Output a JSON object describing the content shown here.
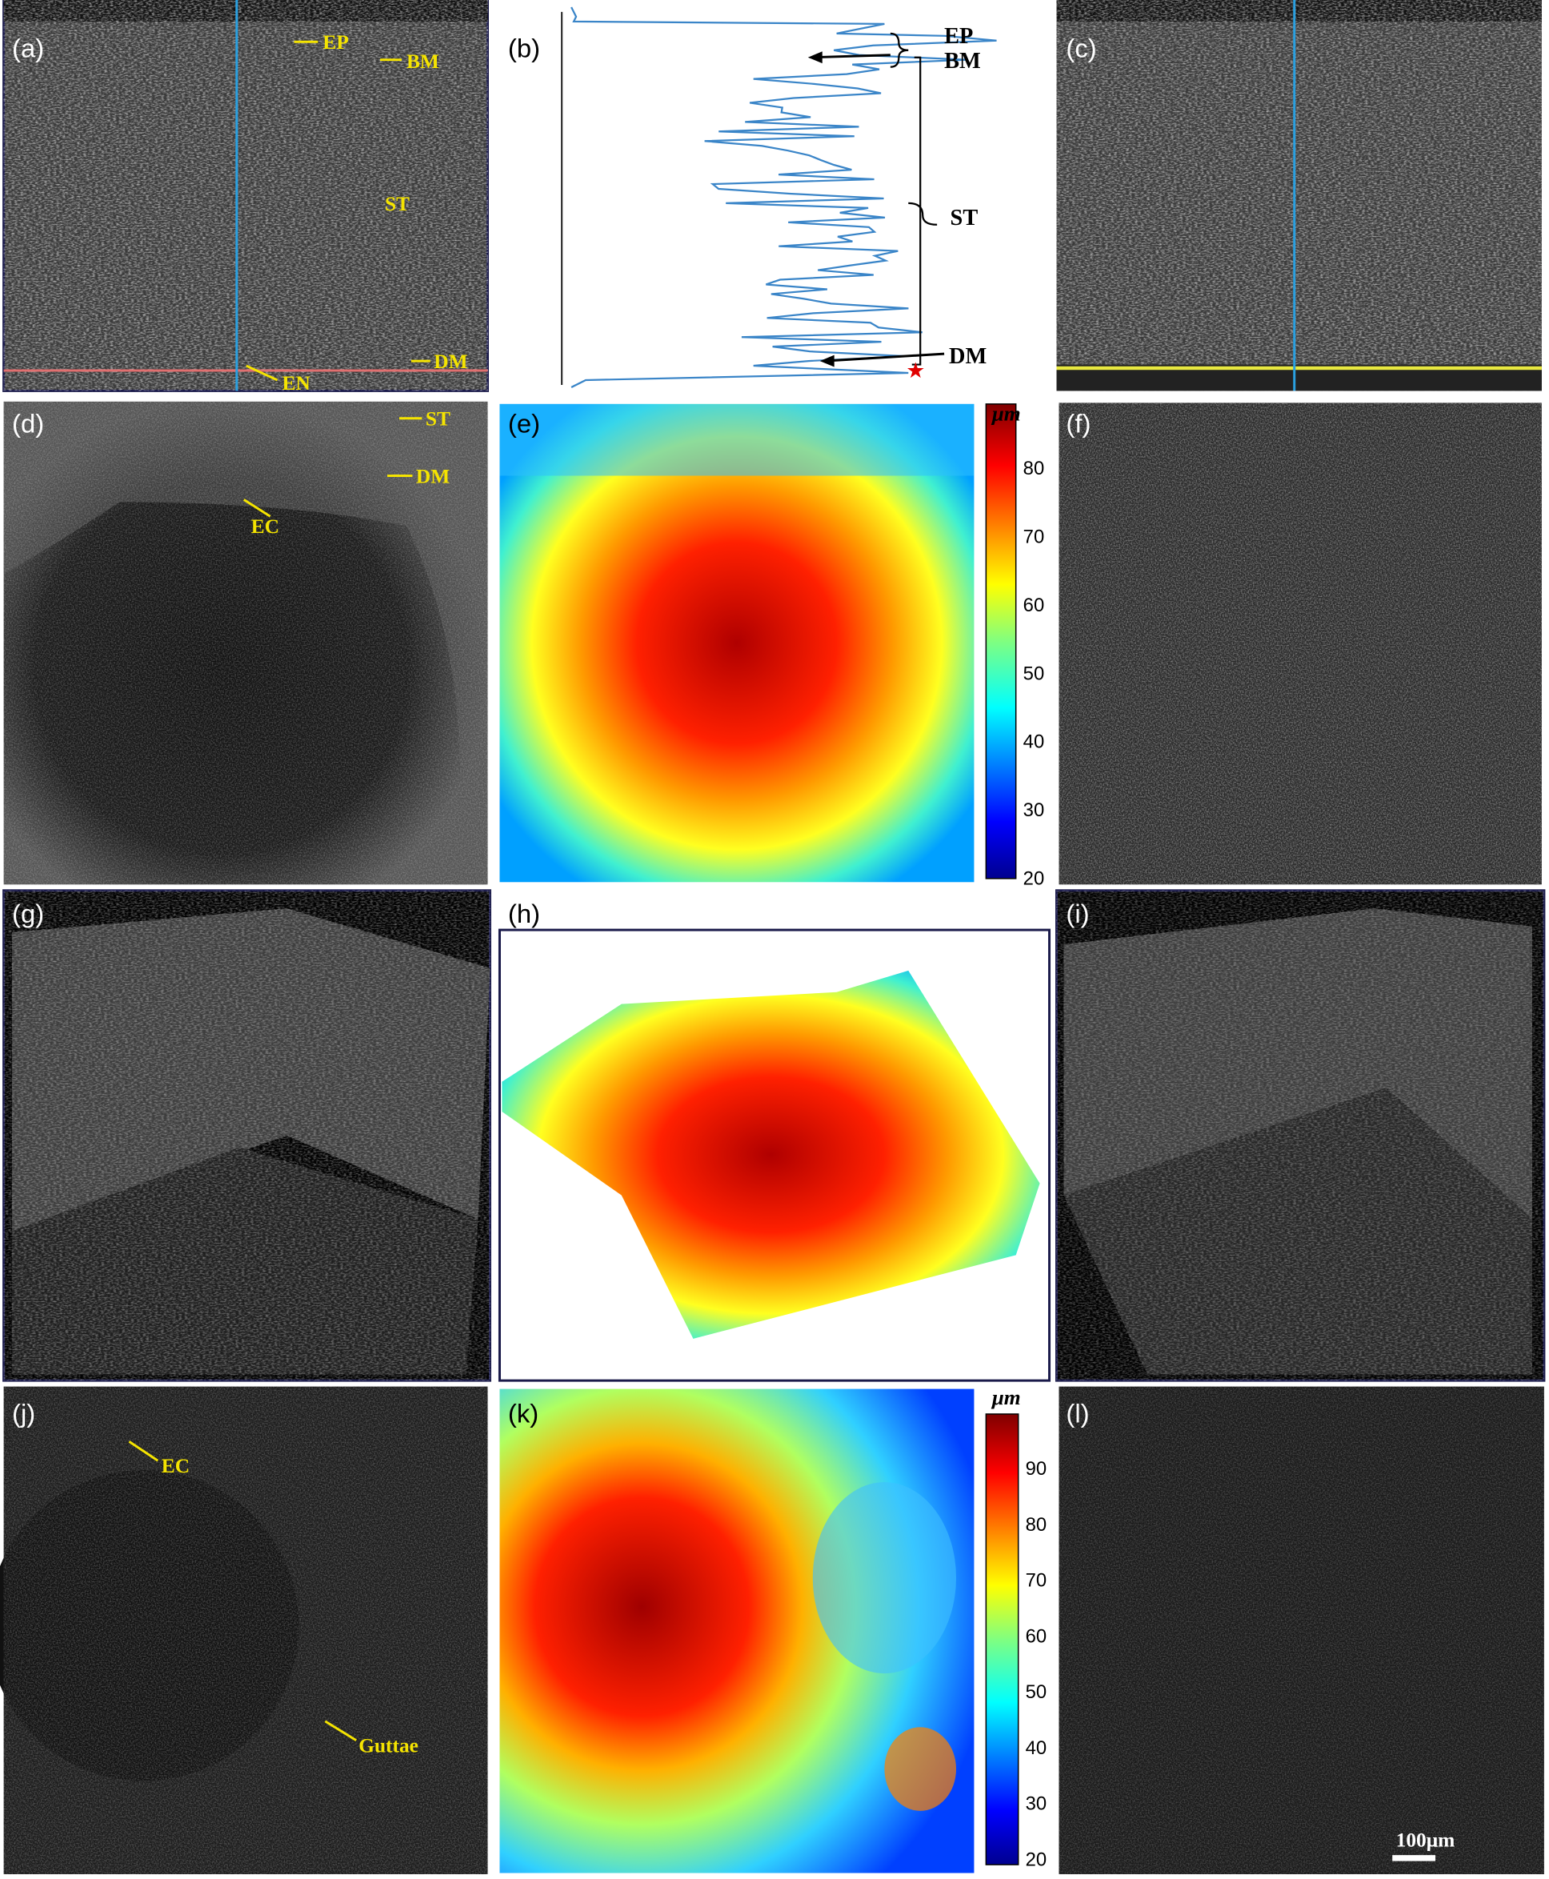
{
  "panels": [
    {
      "label": "(a)",
      "annotations": [
        "EP",
        "BM",
        "ST",
        "DM",
        "EN"
      ]
    },
    {
      "label": "(b)",
      "annotations": [
        "EP",
        "BM",
        "ST",
        "DM"
      ]
    },
    {
      "label": "(c)"
    },
    {
      "label": "(d)",
      "annotations": [
        "ST",
        "DM",
        "EC"
      ]
    },
    {
      "label": "(e)"
    },
    {
      "label": "(f)"
    },
    {
      "label": "(g)"
    },
    {
      "label": "(h)"
    },
    {
      "label": "(i)"
    },
    {
      "label": "(j)",
      "annotations": [
        "EC",
        "Guttae"
      ]
    },
    {
      "label": "(k)"
    },
    {
      "label": "(l)",
      "scale_bar": "100μm"
    }
  ],
  "colorbars": [
    {
      "unit": "μm",
      "ticks": [
        "80",
        "70",
        "60",
        "50",
        "40",
        "30",
        "20"
      ]
    },
    {
      "unit": "μm",
      "ticks": [
        "90",
        "80",
        "70",
        "60",
        "50",
        "40",
        "30",
        "20"
      ]
    }
  ]
}
